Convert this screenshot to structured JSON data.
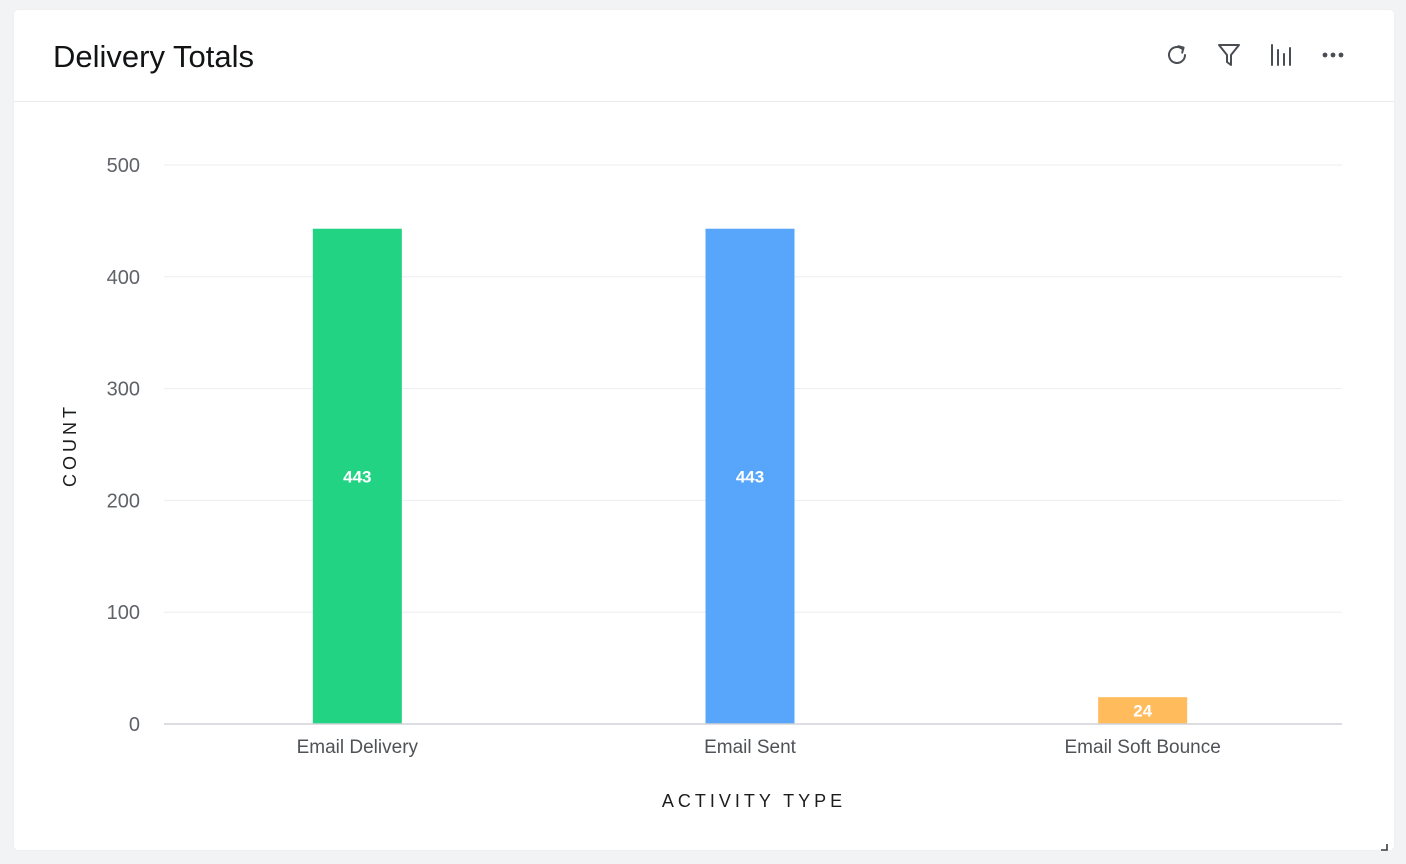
{
  "card": {
    "title": "Delivery Totals"
  },
  "toolbar": {
    "buttons": [
      {
        "name": "refresh-icon"
      },
      {
        "name": "filter-icon"
      },
      {
        "name": "bar-chart-icon"
      },
      {
        "name": "more-icon"
      }
    ]
  },
  "colors": {
    "email_delivery": "#22d384",
    "email_sent": "#58a6fb",
    "email_soft_bounce": "#ffbb5c",
    "gridline": "#eceef1",
    "axis": "#cfd2d6"
  },
  "chart_data": {
    "type": "bar",
    "categories": [
      "Email Delivery",
      "Email Sent",
      "Email Soft Bounce"
    ],
    "values": [
      443,
      443,
      24
    ],
    "data_labels": [
      "443",
      "443",
      "24"
    ],
    "bar_colors": [
      "#22d384",
      "#58a6fb",
      "#ffbb5c"
    ],
    "xlabel": "ACTIVITY TYPE",
    "ylabel": "COUNT",
    "ylim": [
      0,
      500
    ],
    "yticks": [
      0,
      100,
      200,
      300,
      400,
      500
    ],
    "grid": true,
    "legend": "none"
  }
}
